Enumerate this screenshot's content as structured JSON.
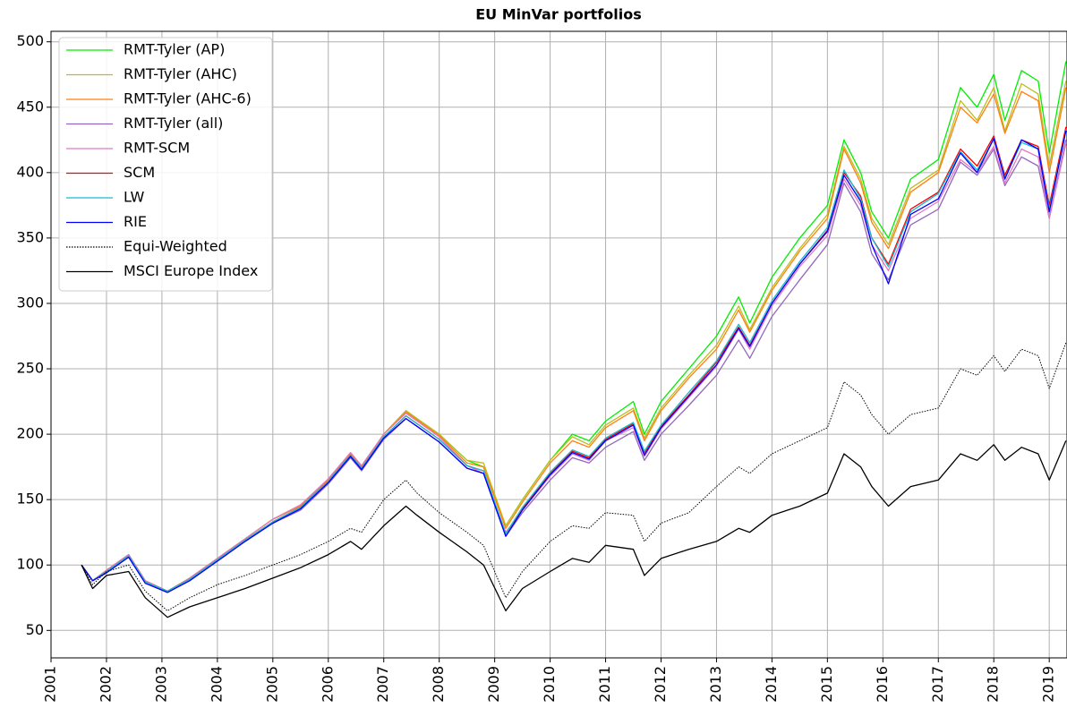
{
  "chart_data": {
    "type": "line",
    "title": "EU MinVar portfolios",
    "x": [
      2001.55,
      2001.75,
      2002.0,
      2002.4,
      2002.7,
      2003.1,
      2003.5,
      2004.0,
      2004.5,
      2005.0,
      2005.5,
      2006.0,
      2006.4,
      2006.6,
      2007.0,
      2007.4,
      2007.6,
      2008.0,
      2008.5,
      2008.8,
      2009.2,
      2009.5,
      2010.0,
      2010.4,
      2010.7,
      2011.0,
      2011.5,
      2011.7,
      2012.0,
      2012.5,
      2013.0,
      2013.4,
      2013.6,
      2014.0,
      2014.5,
      2015.0,
      2015.3,
      2015.6,
      2015.8,
      2016.1,
      2016.5,
      2017.0,
      2017.4,
      2017.7,
      2018.0,
      2018.2,
      2018.5,
      2018.8,
      2019.0,
      2019.3
    ],
    "series": [
      {
        "name": "RMT-Tyler (AP)",
        "color": "#00ee00",
        "values": [
          100,
          88,
          96,
          108,
          88,
          80,
          90,
          105,
          120,
          135,
          145,
          165,
          185,
          175,
          200,
          218,
          212,
          200,
          180,
          175,
          130,
          150,
          180,
          200,
          195,
          210,
          225,
          200,
          225,
          250,
          275,
          305,
          285,
          320,
          350,
          375,
          425,
          400,
          370,
          350,
          395,
          410,
          465,
          450,
          475,
          440,
          478,
          470,
          415,
          485
        ]
      },
      {
        "name": "RMT-Tyler (AHC)",
        "color": "#bcbd22",
        "values": [
          100,
          88,
          96,
          108,
          88,
          80,
          90,
          105,
          120,
          135,
          145,
          165,
          185,
          175,
          200,
          218,
          212,
          200,
          180,
          178,
          130,
          150,
          180,
          198,
          192,
          207,
          220,
          197,
          220,
          245,
          268,
          298,
          280,
          312,
          342,
          368,
          420,
          395,
          365,
          345,
          388,
          402,
          455,
          440,
          465,
          432,
          468,
          460,
          405,
          470
        ]
      },
      {
        "name": "RMT-Tyler (AHC-6)",
        "color": "#ff7f0e",
        "values": [
          100,
          88,
          96,
          108,
          88,
          80,
          90,
          105,
          120,
          135,
          145,
          165,
          185,
          175,
          200,
          217,
          211,
          199,
          178,
          175,
          128,
          148,
          178,
          195,
          190,
          205,
          218,
          195,
          218,
          243,
          265,
          295,
          278,
          310,
          340,
          365,
          418,
          392,
          362,
          342,
          385,
          400,
          450,
          438,
          460,
          430,
          462,
          455,
          400,
          465
        ]
      },
      {
        "name": "RMT-Tyler (all)",
        "color": "#9467bd",
        "values": [
          100,
          88,
          95,
          106,
          87,
          79,
          89,
          103,
          118,
          132,
          142,
          162,
          182,
          172,
          196,
          212,
          206,
          194,
          174,
          170,
          122,
          140,
          165,
          182,
          178,
          190,
          202,
          180,
          200,
          222,
          245,
          272,
          258,
          290,
          318,
          345,
          392,
          370,
          338,
          318,
          360,
          372,
          408,
          398,
          418,
          390,
          412,
          405,
          365,
          425
        ]
      },
      {
        "name": "RMT-SCM",
        "color": "#e377c2",
        "values": [
          100,
          88,
          96,
          108,
          88,
          80,
          90,
          105,
          120,
          135,
          146,
          166,
          186,
          176,
          200,
          216,
          210,
          198,
          176,
          170,
          125,
          142,
          168,
          185,
          180,
          195,
          205,
          183,
          204,
          228,
          252,
          280,
          265,
          298,
          328,
          352,
          395,
          375,
          345,
          325,
          365,
          378,
          410,
          400,
          420,
          392,
          418,
          412,
          365,
          422
        ]
      },
      {
        "name": "SCM",
        "color": "#ff0000",
        "values": [
          100,
          88,
          95,
          107,
          87,
          80,
          89,
          104,
          119,
          133,
          144,
          164,
          184,
          174,
          198,
          214,
          208,
          196,
          176,
          172,
          124,
          143,
          170,
          187,
          182,
          196,
          208,
          186,
          206,
          230,
          255,
          282,
          268,
          300,
          330,
          356,
          400,
          382,
          350,
          330,
          372,
          385,
          418,
          405,
          428,
          398,
          425,
          420,
          375,
          435
        ]
      },
      {
        "name": "LW",
        "color": "#17becf",
        "values": [
          100,
          88,
          95,
          107,
          87,
          80,
          89,
          104,
          119,
          133,
          144,
          164,
          184,
          174,
          198,
          214,
          208,
          196,
          176,
          172,
          124,
          144,
          171,
          188,
          183,
          197,
          209,
          187,
          207,
          232,
          256,
          284,
          270,
          302,
          332,
          358,
          402,
          380,
          350,
          328,
          370,
          384,
          416,
          402,
          426,
          396,
          423,
          418,
          372,
          432
        ]
      },
      {
        "name": "RIE",
        "color": "#0000ff",
        "values": [
          100,
          88,
          94,
          106,
          86,
          79,
          88,
          103,
          118,
          132,
          143,
          163,
          183,
          173,
          197,
          212,
          206,
          194,
          174,
          170,
          122,
          142,
          169,
          186,
          181,
          195,
          207,
          184,
          205,
          229,
          253,
          281,
          267,
          300,
          330,
          355,
          398,
          378,
          345,
          315,
          368,
          380,
          415,
          400,
          426,
          395,
          425,
          418,
          370,
          432
        ]
      },
      {
        "name": "Equi-Weighted",
        "color": "#000000",
        "linestyle": "dotted",
        "values": [
          100,
          85,
          95,
          100,
          80,
          65,
          75,
          85,
          92,
          100,
          108,
          118,
          128,
          125,
          150,
          165,
          155,
          140,
          125,
          115,
          75,
          95,
          118,
          130,
          128,
          140,
          138,
          118,
          132,
          140,
          160,
          175,
          170,
          185,
          195,
          205,
          240,
          230,
          215,
          200,
          215,
          220,
          250,
          245,
          260,
          248,
          265,
          260,
          235,
          270
        ]
      },
      {
        "name": "MSCI Europe Index",
        "color": "#000000",
        "values": [
          100,
          82,
          92,
          95,
          75,
          60,
          68,
          75,
          82,
          90,
          98,
          108,
          118,
          112,
          130,
          145,
          138,
          125,
          110,
          100,
          65,
          82,
          95,
          105,
          102,
          115,
          112,
          92,
          105,
          112,
          118,
          128,
          125,
          138,
          145,
          155,
          185,
          175,
          160,
          145,
          160,
          165,
          185,
          180,
          192,
          180,
          190,
          185,
          165,
          195
        ]
      }
    ],
    "xlim": [
      2001,
      2019.32
    ],
    "xticks": [
      2001,
      2002,
      2003,
      2004,
      2005,
      2006,
      2007,
      2008,
      2009,
      2010,
      2011,
      2012,
      2013,
      2014,
      2015,
      2016,
      2017,
      2018,
      2019
    ],
    "ylim": [
      29,
      508
    ],
    "yticks": [
      50,
      100,
      150,
      200,
      250,
      300,
      350,
      400,
      450,
      500
    ],
    "grid": true,
    "legend": "upper left"
  }
}
